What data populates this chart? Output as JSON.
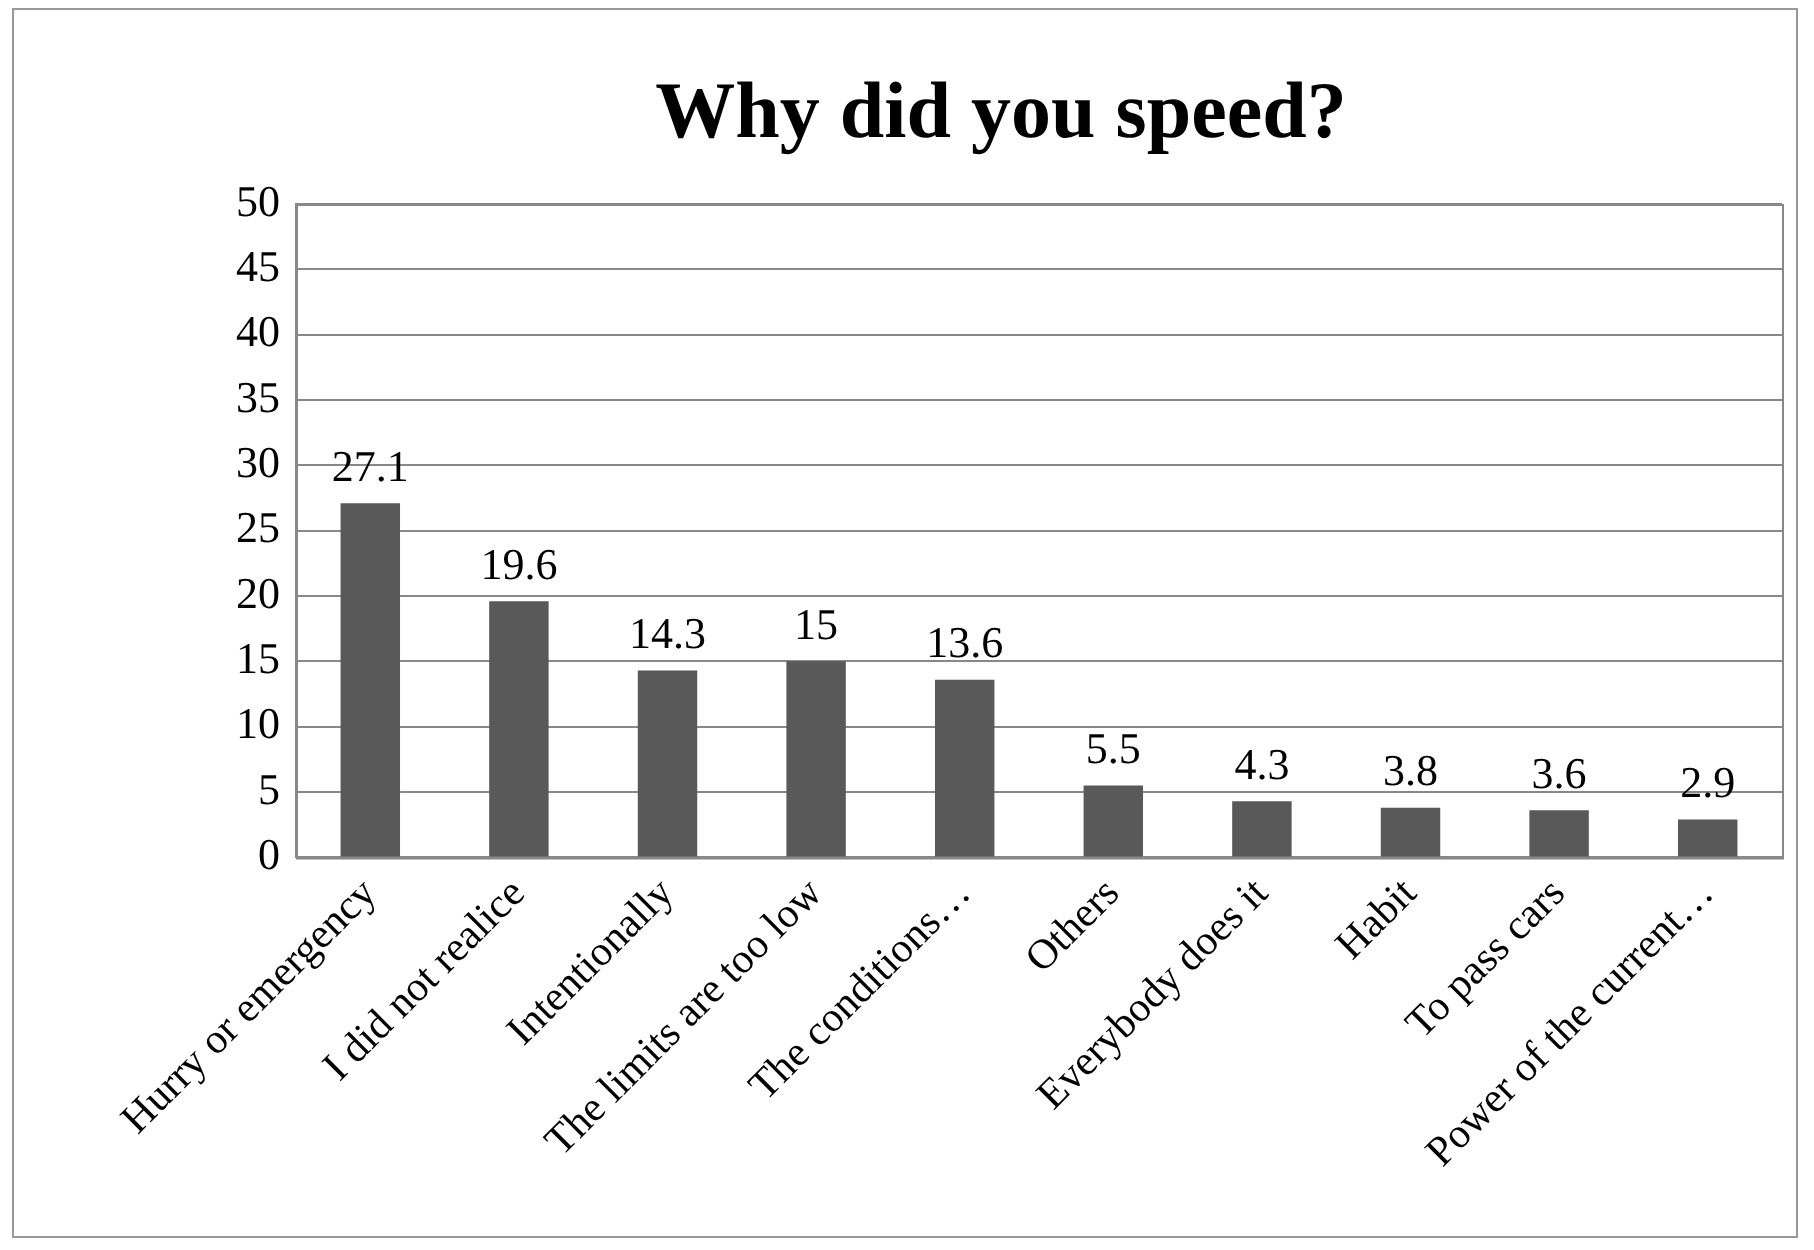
{
  "chart_data": {
    "type": "bar",
    "title": "Why did you speed?",
    "categories": [
      "Hurry or emergency",
      "I did not realice",
      "Intentionally",
      "The limits are too low",
      "The conditions…",
      "Others",
      "Everybody does it",
      "Habit",
      "To pass cars",
      "Power of the current…"
    ],
    "values": [
      27.1,
      19.6,
      14.3,
      15,
      13.6,
      5.5,
      4.3,
      3.8,
      3.6,
      2.9
    ],
    "color": "#595959",
    "ylim": [
      0,
      50
    ],
    "yticks": [
      0,
      5,
      10,
      15,
      20,
      25,
      30,
      35,
      40,
      45,
      50
    ],
    "grid": "y",
    "data_labels": true
  }
}
